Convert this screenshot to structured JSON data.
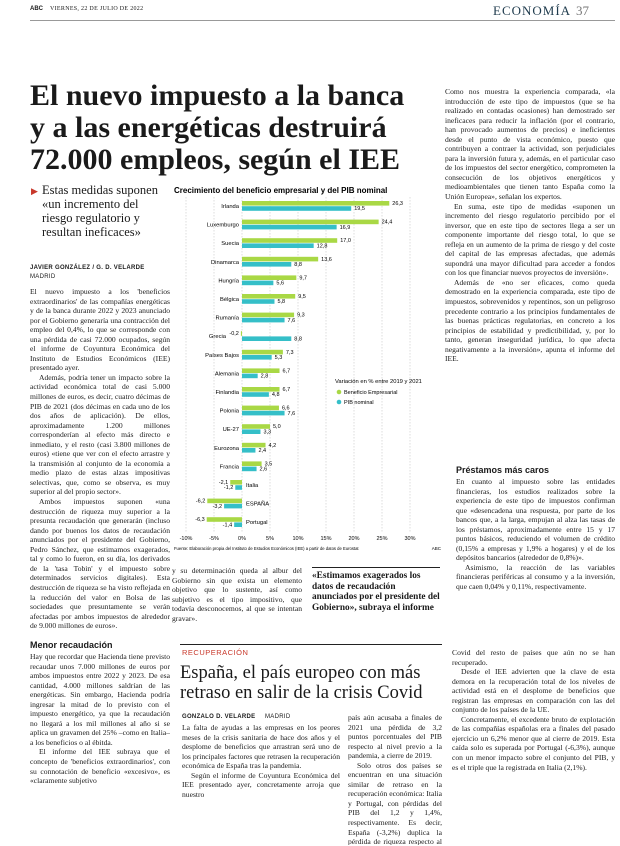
{
  "header": {
    "paper": "ABC",
    "date": "VIERNES, 22 DE JULIO DE 2022",
    "section": "ECONOMÍA",
    "page": "37"
  },
  "article1": {
    "headline_lines": [
      "El nuevo impuesto a la banca",
      "y a las energéticas destruirá",
      "72.000 empleos, según el IEE"
    ],
    "deck": "Estas medidas suponen «un incremento del riesgo regulatorio y resultan ineficaces»",
    "byline": "JAVIER GONZÁLEZ / G. D. VELARDE",
    "location": "MADRID",
    "left_paragraphs": [
      "El nuevo impuesto a los 'beneficios extraordinarios' de las compañías energéticas y de la banca durante 2022 y 2023 anunciado por el Gobierno generaría una contracción del empleo del 0,4%, lo que se corresponde con una pérdida de casi 72.000 ocupados, según el informe de Coyuntura Económica del Instituto de Estudios Económicos (IEE) presentado ayer.",
      "Además, podría tener un impacto sobre la actividad económica total de casi 5.000 millones de euros, es decir, cuatro décimas de PIB de 2021 (dos décimas en cada uno de los dos años de aplicación). De ellos, aproximadamente 1.200 millones corresponderían al efecto más directo e inmediato, y el resto (casi 3.800 millones de euros) «tiene que ver con el efecto arrastre y la transmisión al conjunto de la economía a medio plazo de estas alzas impositivas selectivas, que, como se observa, es muy superior al del propio sector».",
      "Ambos impuestos suponen «una destrucción de riqueza muy superior a la presunta recaudación que generarán (incluso dando por buenos los datos de recaudación anunciados por el presidente del Gobierno, Pedro Sánchez, que estimamos exagerados, tal y como lo fueron, en su día, los derivados de la 'tasa Tobin' y el impuesto sobre determinados servicios digitales). Esta destrucción de riqueza se ha visto reflejada en la reducción del valor en Bolsa de las sociedades que presuntamente se verán afectadas por ambos impuestos de alrededor de 9.000 millones de euros»."
    ],
    "left_subhead": "Menor recaudación",
    "left2_paragraphs": [
      "Hay que recordar que Hacienda tiene previsto recaudar unos 7.000 millones de euros por ambos impuestos entre 2022 y 2023. De esa cantidad, 4.000 millones saldrían de las energéticas. Sin embargo, Hacienda podría ingresar la mitad de lo previsto con el impuesto energético, ya que la recaudación no llegará a los mil millones al año si se aplica un gravamen del 25% –como en Italia– a los beneficios o al ébitda.",
      "El informe del IEE subraya que el concepto de 'beneficios extraordinarios', con su connotación de beneficio «excesivo», es «claramente subjetivo"
    ],
    "middle_paragraphs": [
      "y su determinación queda al albur del Gobierno sin que exista un elemento objetivo que lo sustente, así como subjetivo es el tipo impositivo, que todavía desconocemos, al que se intentan gravar»."
    ],
    "quote": "«Estimamos exagerados los datos de recaudación anunciados por el presidente del Gobierno», subraya el informe",
    "right_paragraphs": [
      "Como nos muestra la experiencia comparada, «la introducción de este tipo de impuestos (que se ha realizado en contadas ocasiones) han demostrado ser ineficaces para reducir la inflación (por el contrario, han provocado aumentos de precios) e ineficientes desde el punto de vista económico, puesto que contribuyen a contraer la actividad, son perjudiciales para la inversión futura y, además, en el particular caso de los impuestos del sector energético, comprometen la consecución de los objetivos energéticos y medioambientales que tienen tanto España como la Unión Europea», señalan los expertos.",
      "En suma, este tipo de medidas «suponen un incremento del riesgo regulatorio percibido por el inversor, que en este tipo de sectores llega a ser un componente importante del riesgo total, lo que se refleja en un aumento de la prima de riesgo y del coste del capital de las empresas afectadas, que además supondrá una mayor dificultad para acceder a fondos con los que financiar nuevos proyectos de inversión».",
      "Además de «no ser eficaces, como queda demostrado en la experiencia comparada, este tipo de impuestos, sobrevenidos y repentinos, son un peligroso precedente contrario a los principios fundamentales de las buenas prácticas regulatorias, en concreto a los principios de estabilidad y predictibilidad, y, por lo tanto, generan inseguridad jurídica, lo que afecta negativamente a la inversión», apunta el informe del IEE."
    ],
    "right_subhead": "Préstamos más caros",
    "right2_paragraphs": [
      "En cuanto al impuesto sobre las entidades financieras, los estudios realizados sobre la experiencia de este tipo de impuestos confirman que «desencadena una respuesta, por parte de los bancos que, a la larga, empujan al alza las tasas de los préstamos, aproximadamente entre 15 y 17 puntos básicos, reduciendo el volumen de crédito (0,15% a empresas y 1,9% a hogares) y el de los depósitos bancarios (alrededor de 0,8%)».",
      "Asimismo, la reacción de las variables financieras periféricas al consumo y a la inversión, que caen 0,04% y 0,11%, respectivamente."
    ]
  },
  "chart_data": {
    "type": "bar",
    "orientation": "horizontal",
    "title": "Crecimiento del beneficio empresarial y del PIB nominal",
    "categories": [
      "Irlanda",
      "Luxemburgo",
      "Suecia",
      "Dinamarca",
      "Hungría",
      "Bélgica",
      "Rumanía",
      "Grecia",
      "Países Bajos",
      "Alemania",
      "Finlandia",
      "Polonia",
      "UE-27",
      "Eurozona",
      "Francia",
      "Italia",
      "ESPAÑA",
      "Portugal"
    ],
    "series": [
      {
        "name": "Beneficio Empresarial",
        "color": "#a9d845",
        "values": [
          26.3,
          24.4,
          17.0,
          13.6,
          9.7,
          9.5,
          9.3,
          -0.2,
          7.3,
          6.7,
          6.7,
          6.6,
          5.0,
          4.2,
          3.5,
          -2.1,
          -6.2,
          -6.3
        ],
        "value_labels": [
          "26,3",
          "24,4",
          "17,0",
          "13,6",
          "9,7",
          "9,5",
          "9,3",
          "-0,2",
          "7,3",
          "6,7",
          "6,7",
          "6,6",
          "5,0",
          "4,2",
          "3,5",
          "-2,1",
          "-6,2",
          "-6,3"
        ]
      },
      {
        "name": "PIB nominal",
        "color": "#35bfc8",
        "values": [
          19.5,
          16.9,
          12.8,
          8.8,
          5.6,
          5.8,
          7.6,
          8.8,
          5.3,
          2.8,
          4.8,
          7.6,
          3.3,
          2.4,
          2.6,
          -1.2,
          -3.2,
          -1.4
        ],
        "value_labels": [
          "19,5",
          "16,9",
          "12,8",
          "8,8",
          "5,6",
          "5,8",
          "7,6",
          "8,8",
          "5,3",
          "2,8",
          "4,8",
          "7,6",
          "3,3",
          "2,4",
          "2,6",
          "-1,2",
          "-3,2",
          "-1,4"
        ]
      }
    ],
    "xlim": [
      -10,
      30
    ],
    "xticks": [
      {
        "value": -10,
        "label": "-10%"
      },
      {
        "value": -5,
        "label": "-5%"
      },
      {
        "value": 0,
        "label": "0%"
      },
      {
        "value": 5,
        "label": "5%"
      },
      {
        "value": 10,
        "label": "10%"
      },
      {
        "value": 15,
        "label": "15%"
      },
      {
        "value": 20,
        "label": "20%"
      },
      {
        "value": 25,
        "label": "25%"
      },
      {
        "value": 30,
        "label": "30%"
      }
    ],
    "grid": true,
    "legend_title": "Variación en % entre 2019 y 2021",
    "source": "Fuente: Elaboración propia del Instituto de Estudios Económicos (IEE) a partir de datos de Eurostat",
    "credit": "ABC"
  },
  "article2": {
    "kicker": "RECUPERACIÓN",
    "headline": "España, el país europeo con más retraso en salir de la crisis Covid",
    "byline": "GONZALO D. VELARDE",
    "location": "MADRID",
    "col1": [
      "La falta de ayudas a las empresas en los peores meses de la crisis sanitaria de hace dos años y el desplome de beneficios que arrastran será uno de los principales factores que retrasen la recuperación económica de España tras la pandemia.",
      "Según el informe de Coyuntura Económica del IEE presentado ayer, concretamente arroja que nuestro"
    ],
    "col2": [
      "país aún acusaba a finales de 2021 una pérdida de 3,2 puntos porcentuales del PIB respecto al nivel previo a la pandemia, a cierre de 2019.",
      "Solo otros dos países se encuentran en una situación similar de retraso en la recuperación económica: Italia y Portugal, con pérdidas del PIB del 1,2 y 1,4%, respectivamente. Es decir, España (-3,2%) duplica la pérdida de riqueza respecto al nivel previo al"
    ],
    "col3": [
      "Covid del resto de países que aún no se han recuperado.",
      "Desde el IEE advierten que la clave de esta demora en la recuperación total de los niveles de actividad está en el desplome de beneficios que registran las empresas en comparación con las del conjunto de los países de la UE.",
      "Concretamente, el excedente bruto de explotación de las compañías españolas era a finales del pasado ejercicio un 6,2% menor que al cierre de 2019. Esta caída solo es superada por Portugal (-6,3%), aunque con un menor impacto sobre el conjunto del PIB, y es el triple que la registrada en Italia (2,1%)."
    ]
  }
}
